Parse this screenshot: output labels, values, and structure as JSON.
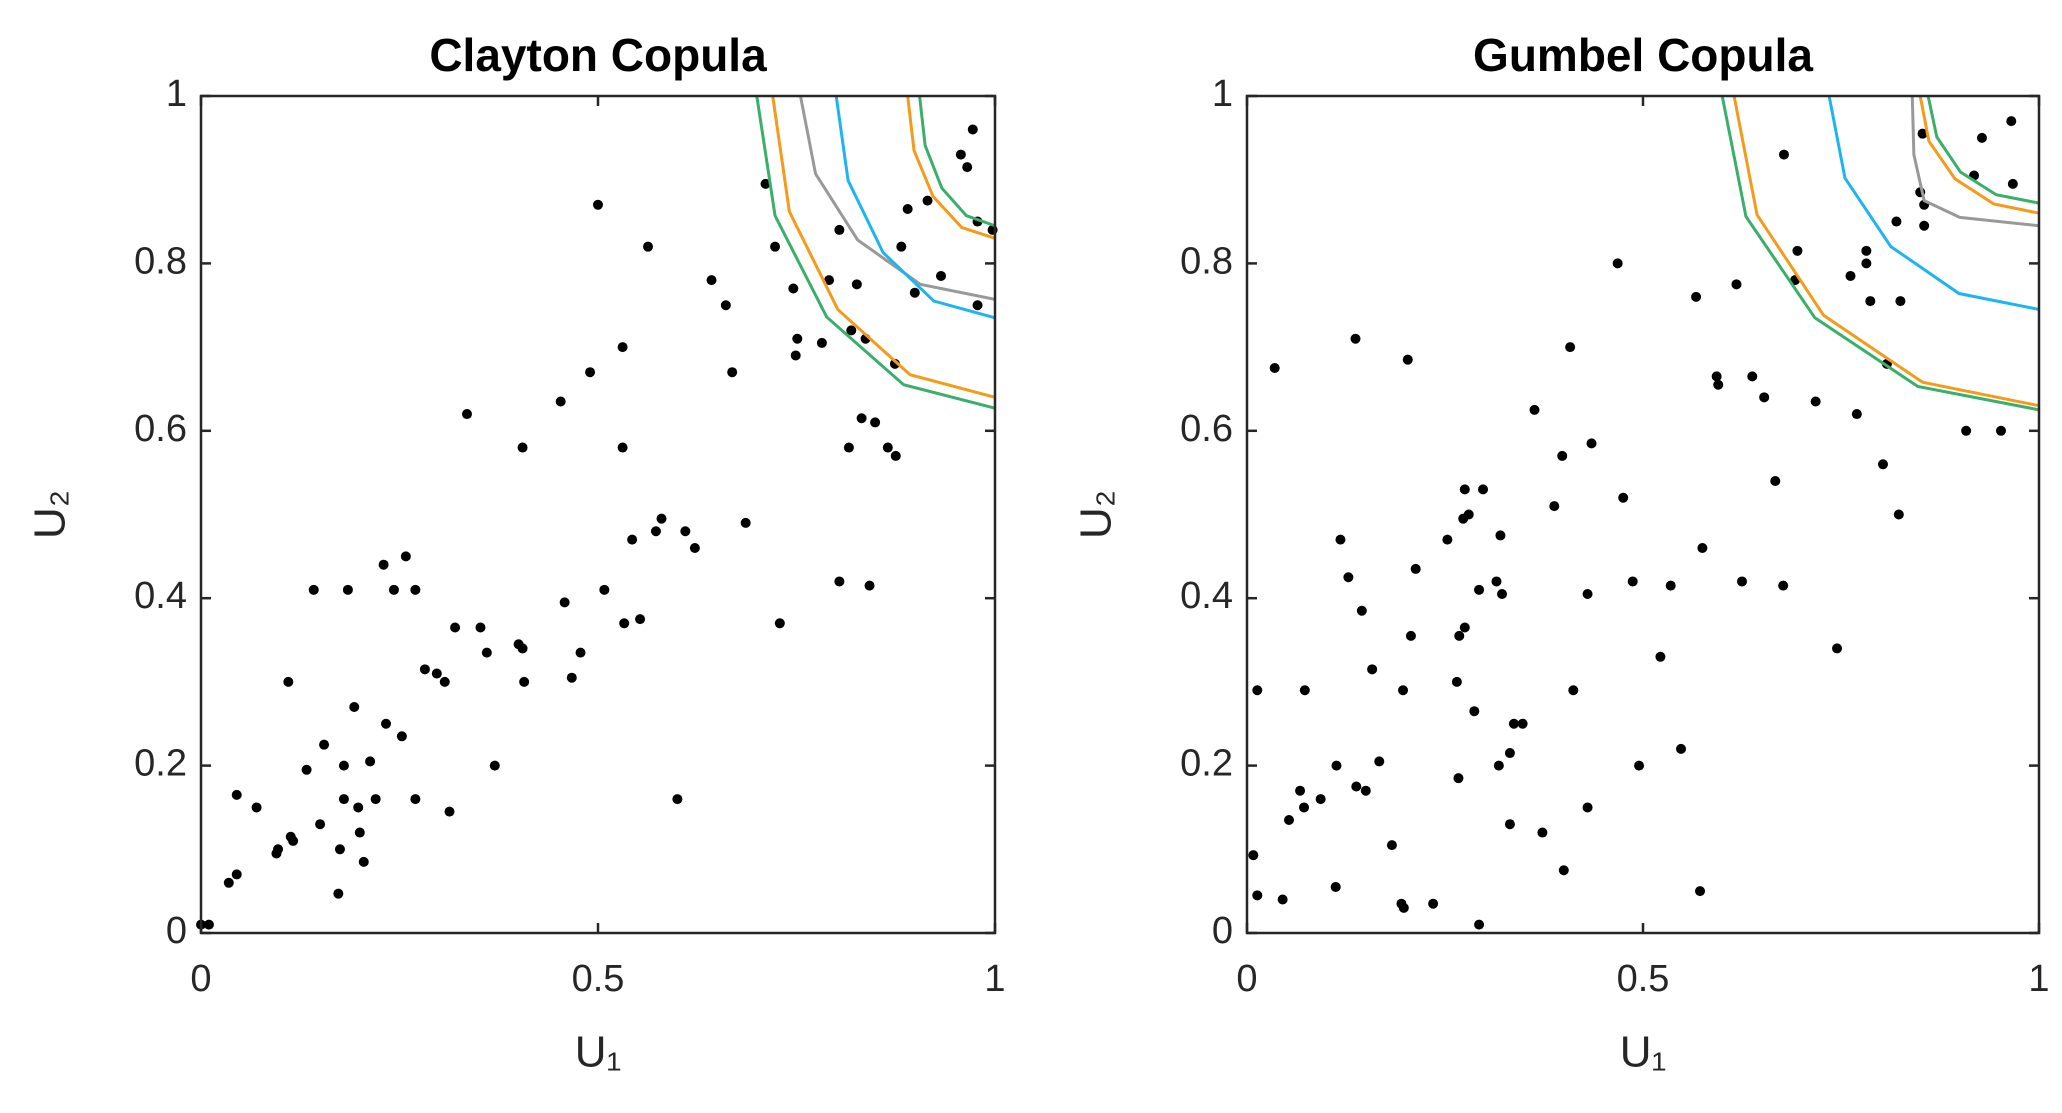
{
  "chart_data": [
    {
      "type": "scatter",
      "title": "Clayton Copula",
      "xlabel": "U₁",
      "ylabel": "U₂",
      "xlim": [
        0,
        1
      ],
      "ylim": [
        0,
        1
      ],
      "xticks": [
        0,
        0.5,
        1
      ],
      "yticks": [
        0,
        0.2,
        0.4,
        0.6,
        0.8,
        1
      ],
      "grid": false,
      "series": [
        {
          "type": "scatter",
          "color": "#000000",
          "x": [
            0,
            0.01,
            0.035,
            0.045,
            0.045,
            0.07,
            0.095,
            0.097,
            0.113,
            0.116,
            0.11,
            0.133,
            0.142,
            0.15,
            0.155,
            0.175,
            0.173,
            0.18,
            0.18,
            0.185,
            0.193,
            0.198,
            0.2,
            0.205,
            0.213,
            0.22,
            0.23,
            0.233,
            0.243,
            0.253,
            0.258,
            0.27,
            0.27,
            0.282,
            0.297,
            0.307,
            0.313,
            0.32,
            0.335,
            0.352,
            0.36,
            0.37,
            0.4,
            0.405,
            0.405,
            0.407,
            0.453,
            0.458,
            0.467,
            0.478,
            0.49,
            0.5,
            0.508,
            0.531,
            0.531,
            0.533,
            0.543,
            0.553,
            0.563,
            0.573,
            0.58,
            0.6,
            0.61,
            0.622,
            0.643,
            0.661,
            0.669,
            0.686,
            0.711,
            0.723,
            0.729,
            0.746,
            0.751,
            0.749,
            0.782,
            0.791,
            0.804,
            0.804,
            0.816,
            0.819,
            0.826,
            0.832,
            0.837,
            0.842,
            0.849,
            0.865,
            0.875,
            0.874,
            0.882,
            0.89,
            0.899,
            0.915,
            0.932,
            0.957,
            0.965,
            0.972,
            0.978,
            0.978,
            0.997
          ],
          "values": [
            0.01,
            0.01,
            0.06,
            0.07,
            0.165,
            0.15,
            0.095,
            0.1,
            0.115,
            0.11,
            0.3,
            0.195,
            0.41,
            0.13,
            0.225,
            0.1,
            0.047,
            0.16,
            0.2,
            0.41,
            0.27,
            0.15,
            0.12,
            0.085,
            0.205,
            0.16,
            0.44,
            0.25,
            0.41,
            0.235,
            0.45,
            0.41,
            0.16,
            0.315,
            0.31,
            0.3,
            0.145,
            0.365,
            0.62,
            0.365,
            0.335,
            0.2,
            0.345,
            0.34,
            0.58,
            0.3,
            0.635,
            0.395,
            0.305,
            0.335,
            0.67,
            0.87,
            0.41,
            0.7,
            0.58,
            0.37,
            0.47,
            0.375,
            0.82,
            0.48,
            0.495,
            0.16,
            0.48,
            0.46,
            0.78,
            0.75,
            0.67,
            0.49,
            0.895,
            0.82,
            0.37,
            0.77,
            0.71,
            0.69,
            0.705,
            0.78,
            0.84,
            0.42,
            0.58,
            0.72,
            0.775,
            0.615,
            0.71,
            0.415,
            0.61,
            0.58,
            0.57,
            0.68,
            0.82,
            0.865,
            0.765,
            0.875,
            0.785,
            0.93,
            0.915,
            0.96,
            0.85,
            0.75,
            0.84
          ]
        },
        {
          "type": "line",
          "color": "#3aaf6a",
          "x": [
            0.7,
            0.723,
            0.788,
            0.885,
            1
          ],
          "values": [
            1,
            0.857,
            0.736,
            0.655,
            0.627
          ]
        },
        {
          "type": "line",
          "color": "#f59a1b",
          "x": [
            0.72,
            0.741,
            0.802,
            0.893,
            1
          ],
          "values": [
            1,
            0.862,
            0.745,
            0.667,
            0.64
          ]
        },
        {
          "type": "line",
          "color": "#999999",
          "x": [
            0.755,
            0.774,
            0.827,
            0.906,
            1
          ],
          "values": [
            1,
            0.907,
            0.828,
            0.775,
            0.757
          ]
        },
        {
          "type": "line",
          "color": "#1eb4f0",
          "x": [
            0.8,
            0.815,
            0.859,
            0.923,
            1
          ],
          "values": [
            1,
            0.899,
            0.813,
            0.755,
            0.735
          ]
        },
        {
          "type": "line",
          "color": "#f59a1b",
          "x": [
            0.89,
            0.898,
            0.922,
            0.958,
            1
          ],
          "values": [
            1,
            0.935,
            0.88,
            0.843,
            0.83
          ]
        },
        {
          "type": "line",
          "color": "#3aaf6a",
          "x": [
            0.905,
            0.912,
            0.933,
            0.964,
            1
          ],
          "values": [
            1,
            0.941,
            0.89,
            0.857,
            0.845
          ]
        }
      ]
    },
    {
      "type": "scatter",
      "title": "Gumbel Copula",
      "xlabel": "U₁",
      "ylabel": "U₂",
      "xlim": [
        0,
        1
      ],
      "ylim": [
        0,
        1
      ],
      "xticks": [
        0,
        0.5,
        1
      ],
      "yticks": [
        0,
        0.2,
        0.4,
        0.6,
        0.8,
        1
      ],
      "grid": false,
      "series": [
        {
          "type": "scatter",
          "color": "#000000",
          "x": [
            0.008,
            0.013,
            0.013,
            0.035,
            0.045,
            0.053,
            0.067,
            0.073,
            0.072,
            0.093,
            0.113,
            0.112,
            0.118,
            0.128,
            0.137,
            0.138,
            0.145,
            0.15,
            0.158,
            0.167,
            0.183,
            0.195,
            0.198,
            0.197,
            0.203,
            0.207,
            0.213,
            0.235,
            0.253,
            0.265,
            0.267,
            0.268,
            0.273,
            0.275,
            0.275,
            0.28,
            0.287,
            0.293,
            0.293,
            0.298,
            0.315,
            0.318,
            0.32,
            0.322,
            0.332,
            0.332,
            0.337,
            0.348,
            0.363,
            0.373,
            0.388,
            0.398,
            0.4,
            0.408,
            0.412,
            0.43,
            0.43,
            0.435,
            0.468,
            0.475,
            0.487,
            0.495,
            0.522,
            0.535,
            0.548,
            0.567,
            0.572,
            0.575,
            0.593,
            0.595,
            0.618,
            0.625,
            0.638,
            0.653,
            0.667,
            0.677,
            0.678,
            0.692,
            0.695,
            0.718,
            0.745,
            0.762,
            0.77,
            0.782,
            0.782,
            0.787,
            0.803,
            0.808,
            0.82,
            0.823,
            0.825,
            0.85,
            0.853,
            0.855,
            0.855,
            0.908,
            0.918,
            0.928,
            0.952,
            0.965,
            0.967
          ],
          "values": [
            0.093,
            0.29,
            0.045,
            0.675,
            0.04,
            0.135,
            0.17,
            0.29,
            0.15,
            0.16,
            0.2,
            0.055,
            0.47,
            0.425,
            0.71,
            0.175,
            0.385,
            0.17,
            0.315,
            0.205,
            0.105,
            0.035,
            0.03,
            0.29,
            0.685,
            0.355,
            0.435,
            0.035,
            0.47,
            0.3,
            0.185,
            0.355,
            0.495,
            0.365,
            0.53,
            0.5,
            0.265,
            0.41,
            0.01,
            0.53,
            0.42,
            0.2,
            0.475,
            0.405,
            0.215,
            0.13,
            0.25,
            0.25,
            0.625,
            0.12,
            0.51,
            0.57,
            0.075,
            0.7,
            0.29,
            0.405,
            0.15,
            0.585,
            0.8,
            0.52,
            0.42,
            0.2,
            0.33,
            0.415,
            0.22,
            0.76,
            0.05,
            0.46,
            0.665,
            0.655,
            0.775,
            0.42,
            0.665,
            0.64,
            0.54,
            0.415,
            0.93,
            0.78,
            0.815,
            0.635,
            0.34,
            0.785,
            0.62,
            0.815,
            0.8,
            0.755,
            0.56,
            0.68,
            0.85,
            0.5,
            0.755,
            0.885,
            0.955,
            0.87,
            0.845,
            0.6,
            0.905,
            0.95,
            0.6,
            0.97,
            0.895
          ]
        },
        {
          "type": "line",
          "color": "#3aaf6a",
          "x": [
            0.6,
            0.63,
            0.717,
            0.847,
            1
          ],
          "values": [
            1,
            0.856,
            0.735,
            0.653,
            0.625
          ]
        },
        {
          "type": "line",
          "color": "#f59a1b",
          "x": [
            0.615,
            0.644,
            0.728,
            0.853,
            1
          ],
          "values": [
            1,
            0.858,
            0.738,
            0.658,
            0.63
          ]
        },
        {
          "type": "line",
          "color": "#1eb4f0",
          "x": [
            0.735,
            0.755,
            0.813,
            0.899,
            1
          ],
          "values": [
            1,
            0.902,
            0.82,
            0.764,
            0.745
          ]
        },
        {
          "type": "line",
          "color": "#999999",
          "x": [
            0.84,
            0.842,
            0.855,
            0.9,
            1
          ],
          "values": [
            1,
            0.93,
            0.875,
            0.855,
            0.845
          ]
        },
        {
          "type": "line",
          "color": "#f59a1b",
          "x": [
            0.85,
            0.861,
            0.894,
            0.943,
            1
          ],
          "values": [
            1,
            0.946,
            0.901,
            0.871,
            0.86
          ]
        },
        {
          "type": "line",
          "color": "#3aaf6a",
          "x": [
            0.86,
            0.871,
            0.901,
            0.946,
            1
          ],
          "values": [
            1,
            0.951,
            0.909,
            0.882,
            0.872
          ]
        }
      ]
    }
  ]
}
